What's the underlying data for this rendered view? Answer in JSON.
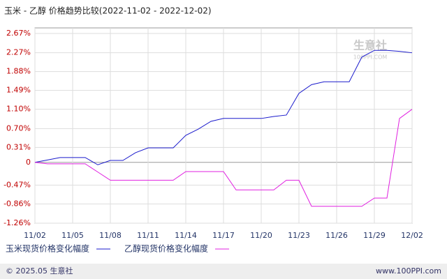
{
  "chart_data": {
    "type": "line",
    "title": "玉米 - 乙醇 价格趋势比较(2022-11-02 - 2022-12-02)",
    "categories": [
      "11/02",
      null,
      null,
      "11/05",
      null,
      null,
      "11/08",
      null,
      null,
      "11/11",
      null,
      null,
      "11/14",
      null,
      null,
      "11/17",
      null,
      null,
      "11/20",
      null,
      null,
      "11/23",
      null,
      null,
      "11/26",
      null,
      null,
      "11/29",
      null,
      null,
      "12/02"
    ],
    "series": [
      {
        "name": "玉米现货价格变化幅度",
        "color": "#1a1acc",
        "values": [
          0,
          0.05,
          0.1,
          0.1,
          0.1,
          -0.05,
          0.04,
          0.04,
          0.2,
          0.3,
          0.3,
          0.3,
          0.56,
          0.69,
          0.85,
          0.91,
          0.91,
          0.91,
          0.91,
          0.95,
          0.98,
          1.43,
          1.61,
          1.67,
          1.67,
          1.67,
          2.18,
          2.32,
          2.32,
          2.3,
          2.27
        ]
      },
      {
        "name": "乙醇现货价格变化幅度",
        "color": "#e020e0",
        "values": [
          0,
          -0.03,
          -0.03,
          -0.03,
          -0.03,
          -0.2,
          -0.37,
          -0.37,
          -0.37,
          -0.37,
          -0.37,
          -0.37,
          -0.19,
          -0.19,
          -0.19,
          -0.19,
          -0.57,
          -0.57,
          -0.57,
          -0.57,
          -0.37,
          -0.37,
          -0.91,
          -0.91,
          -0.91,
          -0.91,
          -0.91,
          -0.74,
          -0.74,
          0.91,
          1.1
        ]
      }
    ],
    "ylim": [
      -1.26,
      2.67
    ],
    "yticks": [
      {
        "value": 2.67,
        "label": "2.67%"
      },
      {
        "value": 2.27,
        "label": "2.27%"
      },
      {
        "value": 1.88,
        "label": "1.88%"
      },
      {
        "value": 1.49,
        "label": "1.49%"
      },
      {
        "value": 1.1,
        "label": "1.10%"
      },
      {
        "value": 0.7,
        "label": "0.70%"
      },
      {
        "value": 0.31,
        "label": "0.31%"
      },
      0,
      {
        "value": -0.47,
        "label": "-0.47%"
      },
      {
        "value": -0.86,
        "label": "-0.86%"
      },
      {
        "value": -1.26,
        "label": "-1.26%"
      }
    ],
    "grid": true,
    "watermark": [
      "生意社",
      "100PPI.COM"
    ],
    "footer": {
      "left": "© 2025.05 生意社",
      "right": "www.100PPI.com"
    }
  }
}
